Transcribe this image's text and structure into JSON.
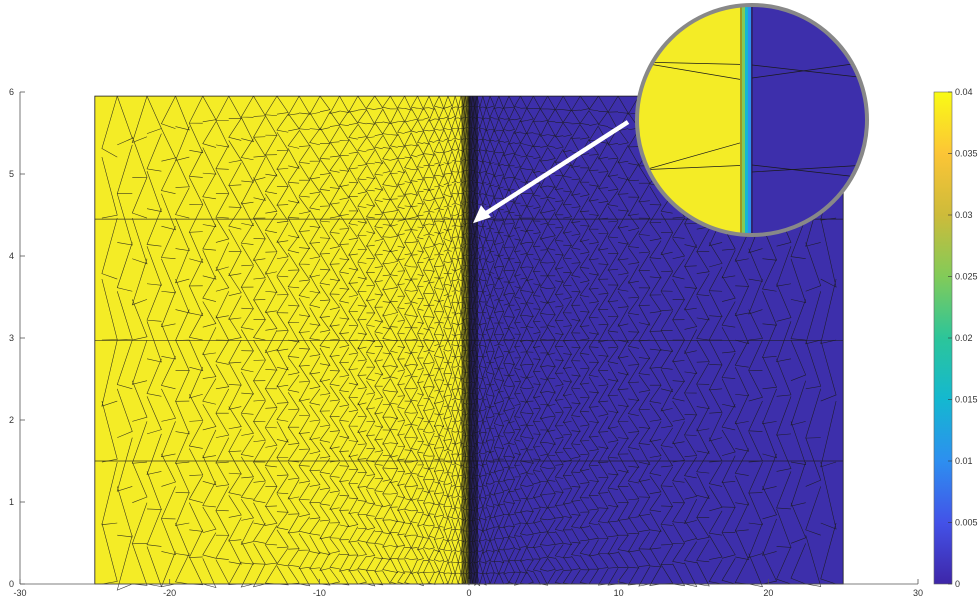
{
  "chart_data": {
    "type": "heatmap",
    "description_mesh": "triangulated finite-element mesh, refined near x=0",
    "x_ticks": [
      "-30",
      "-20",
      "-10",
      "0",
      "10",
      "20",
      "30"
    ],
    "x_tick_values": [
      -30,
      -20,
      -10,
      0,
      10,
      20,
      30
    ],
    "y_ticks": [
      "0",
      "1",
      "2",
      "3",
      "4",
      "5",
      "6"
    ],
    "y_tick_values": [
      0,
      1,
      2,
      3,
      4,
      5,
      6
    ],
    "xlim": [
      -30,
      30
    ],
    "ylim": [
      0,
      6
    ],
    "domain": {
      "x": [
        -25,
        25
      ],
      "y": [
        0,
        5.95
      ]
    },
    "field": [
      {
        "region": "left",
        "x_range": [
          -25,
          0
        ],
        "value": 0.04
      },
      {
        "region": "right",
        "x_range": [
          0,
          25
        ],
        "value": 0
      }
    ],
    "colorbar": {
      "ticks": [
        "0",
        "0.005",
        "0.01",
        "0.015",
        "0.02",
        "0.025",
        "0.03",
        "0.035",
        "0.04"
      ],
      "tick_values": [
        0,
        0.005,
        0.01,
        0.015,
        0.02,
        0.025,
        0.03,
        0.035,
        0.04
      ],
      "range": [
        0,
        0.04
      ]
    },
    "zoom_inset": {
      "target": [
        0,
        4.4
      ],
      "shows": "sharp interface at x=0"
    },
    "title": "",
    "xlabel": "",
    "ylabel": ""
  },
  "colors": {
    "high": "#f4ec26",
    "low": "#3d2fab",
    "mesh": "#1a1a1a",
    "colormap": [
      "#3e26a8",
      "#4352e8",
      "#2d8ff0",
      "#14b8d0",
      "#2cc59a",
      "#82cb59",
      "#cdbb3a",
      "#fcc536",
      "#f9fb15"
    ]
  }
}
